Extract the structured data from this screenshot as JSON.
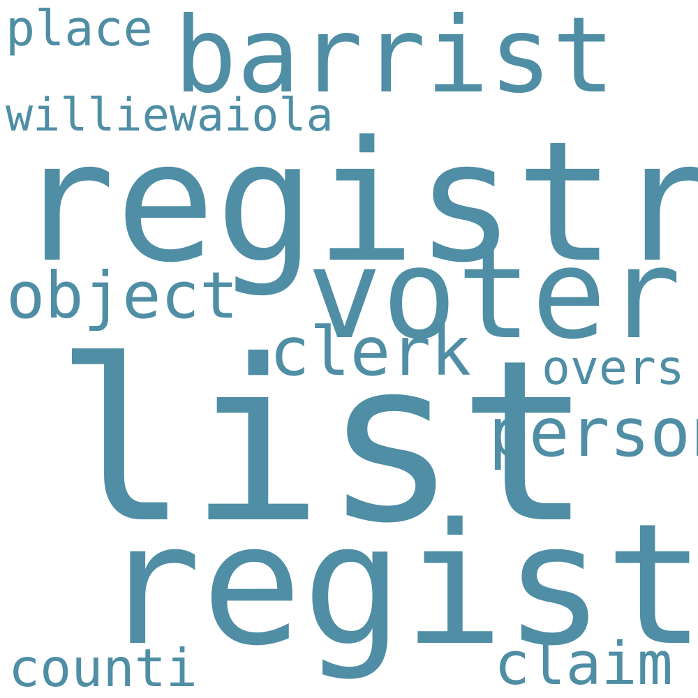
{
  "word_color": "#4f8ea5",
  "background_color": "#ffffff",
  "words": {
    "list": "list",
    "regist": "regist",
    "registr": "registr",
    "voter": "voter",
    "barrist": "barrist",
    "person": "person",
    "clerk": "clerk",
    "object": "object",
    "overs": "overs",
    "claim": "claim",
    "counti": "counti",
    "place": "place",
    "williewaiola": "williewaiola"
  }
}
